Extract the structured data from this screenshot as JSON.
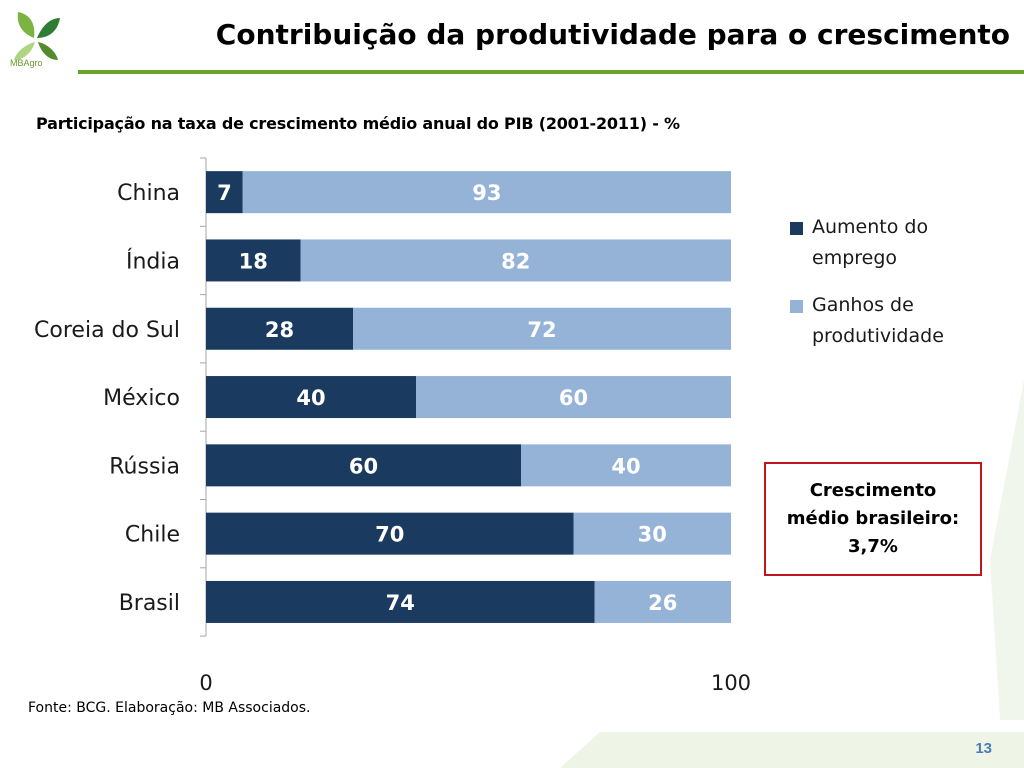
{
  "brand": {
    "name": "MBAgro"
  },
  "page": {
    "title": "Contribuição da produtividade para o crescimento",
    "source": "Fonte: BCG. Elaboração: MB Associados.",
    "page_number": "13"
  },
  "callout": {
    "line1": "Crescimento",
    "line2": "médio brasileiro:",
    "line3": "3,7%"
  },
  "colors": {
    "employment": "#1b3a5f",
    "productivity": "#95b3d7",
    "accent_green": "#6aa32b",
    "callout_border": "#c0161f"
  },
  "chart_data": {
    "type": "bar",
    "orientation": "horizontal",
    "stacked": true,
    "title": "Participação  na taxa de crescimento médio anual do PIB (2001-2011) - %",
    "categories": [
      "China",
      "Índia",
      "Coreia do Sul",
      "México",
      "Rússia",
      "Chile",
      "Brasil"
    ],
    "series": [
      {
        "name": "Aumento do emprego",
        "values": [
          7,
          18,
          28,
          40,
          60,
          70,
          74
        ]
      },
      {
        "name": "Ganhos de produtividade",
        "values": [
          93,
          82,
          72,
          60,
          40,
          30,
          26
        ]
      }
    ],
    "xlim": [
      0,
      100
    ],
    "x_ticks": [
      "0",
      "100"
    ],
    "legend": "right",
    "grid": false,
    "data_labels": true
  }
}
